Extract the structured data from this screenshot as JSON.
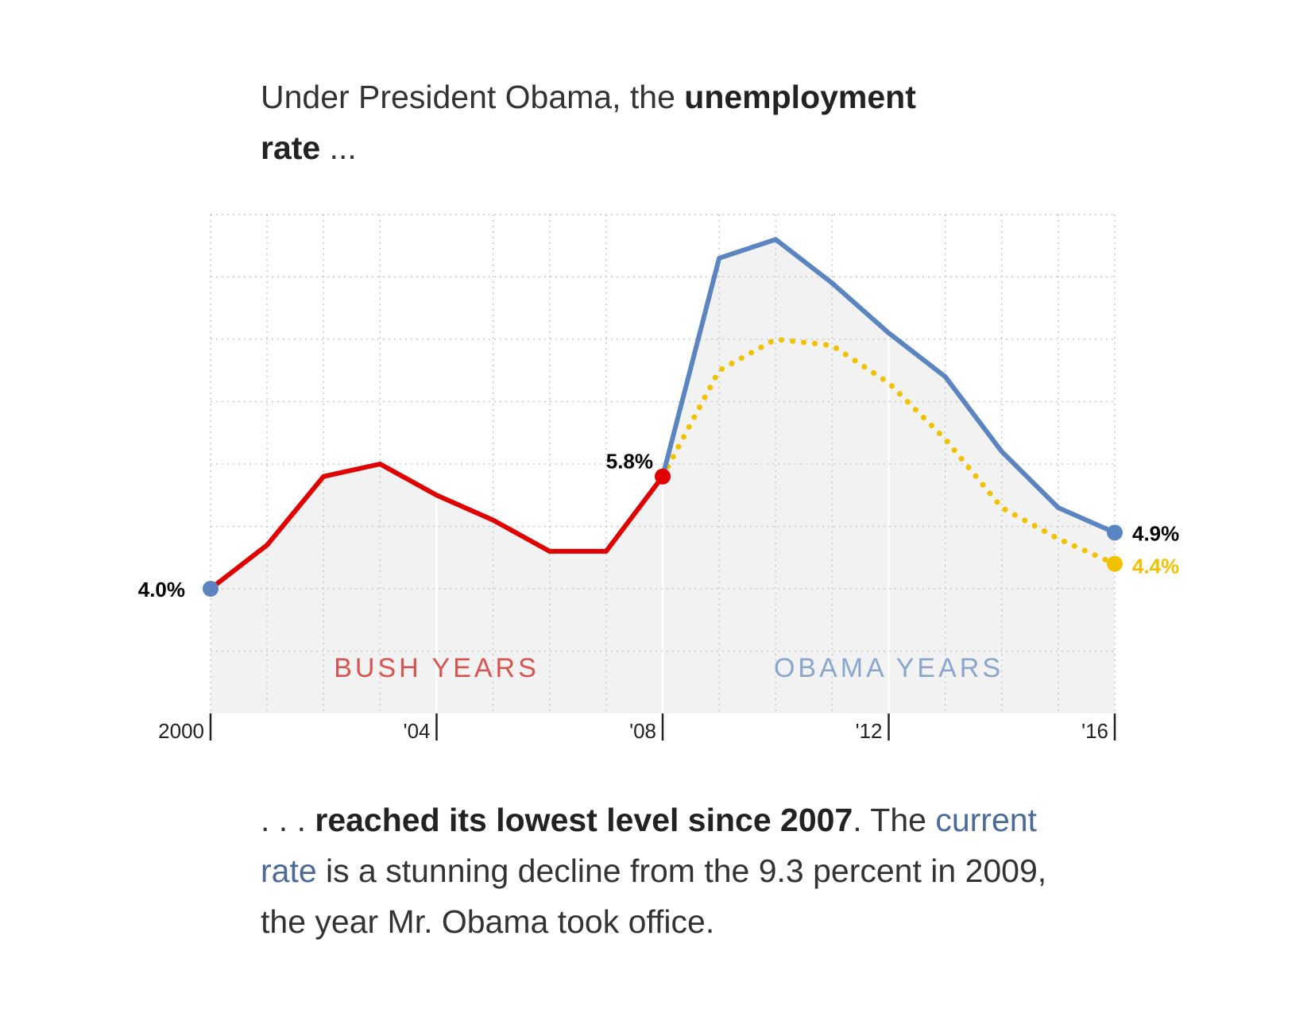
{
  "headline": {
    "text_before": "Under President Obama, the ",
    "bold": "unemployment rate",
    "text_after": " ..."
  },
  "footer": {
    "lead": ". . . ",
    "bold": "reached its lowest level since 2007",
    "text_1": ". The ",
    "link": "current rate",
    "text_2": " is a stunning decline from the 9.3 percent in 2009, the year Mr. Obama took office."
  },
  "colors": {
    "bush": "#e00000",
    "obama": "#5b85c1",
    "u6_dotted": "#f2c200",
    "fill": "#f2f2f2",
    "grid": "#c8c8c8",
    "bush_label": "#d9534f",
    "obama_label": "#8aa6cf"
  },
  "chart_data": {
    "type": "line",
    "x_axis": {
      "ticks": [
        {
          "x": 2000,
          "label": "2000"
        },
        {
          "x": 2004,
          "label": "'04"
        },
        {
          "x": 2008,
          "label": "'08"
        },
        {
          "x": 2012,
          "label": "'12"
        },
        {
          "x": 2016,
          "label": "'16"
        }
      ],
      "xlim": [
        2000,
        2016
      ]
    },
    "ylim": [
      2.0,
      10.0
    ],
    "grid": true,
    "series": [
      {
        "key": "bush",
        "x": [
          2000,
          2001,
          2002,
          2003,
          2004,
          2005,
          2006,
          2007,
          2008
        ],
        "y": [
          4.0,
          4.7,
          5.8,
          6.0,
          5.5,
          5.1,
          4.6,
          4.6,
          5.8
        ],
        "style": "solid"
      },
      {
        "key": "obama",
        "x": [
          2008,
          2009,
          2010,
          2011,
          2012,
          2013,
          2014,
          2015,
          2016
        ],
        "y": [
          5.8,
          9.3,
          9.6,
          8.9,
          8.1,
          7.4,
          6.2,
          5.3,
          4.9
        ],
        "style": "solid"
      },
      {
        "key": "u6_dotted",
        "x": [
          2008,
          2009,
          2010,
          2011,
          2012,
          2013,
          2014,
          2015,
          2016
        ],
        "y": [
          5.8,
          7.5,
          8.0,
          7.9,
          7.3,
          6.4,
          5.3,
          4.8,
          4.4
        ],
        "style": "dotted"
      }
    ],
    "annotations": [
      {
        "text": "4.0%",
        "x": 2000,
        "y": 4.0,
        "color": "#000000"
      },
      {
        "text": "5.8%",
        "x": 2008,
        "y": 5.8,
        "color": "#000000"
      },
      {
        "text": "4.9%",
        "x": 2016,
        "y": 4.9,
        "color": "#000000"
      },
      {
        "text": "4.4%",
        "x": 2016,
        "y": 4.4,
        "color": "#f2c200"
      }
    ],
    "period_labels": [
      {
        "text": "BUSH YEARS",
        "key": "bush_label"
      },
      {
        "text": "OBAMA YEARS",
        "key": "obama_label"
      }
    ]
  }
}
